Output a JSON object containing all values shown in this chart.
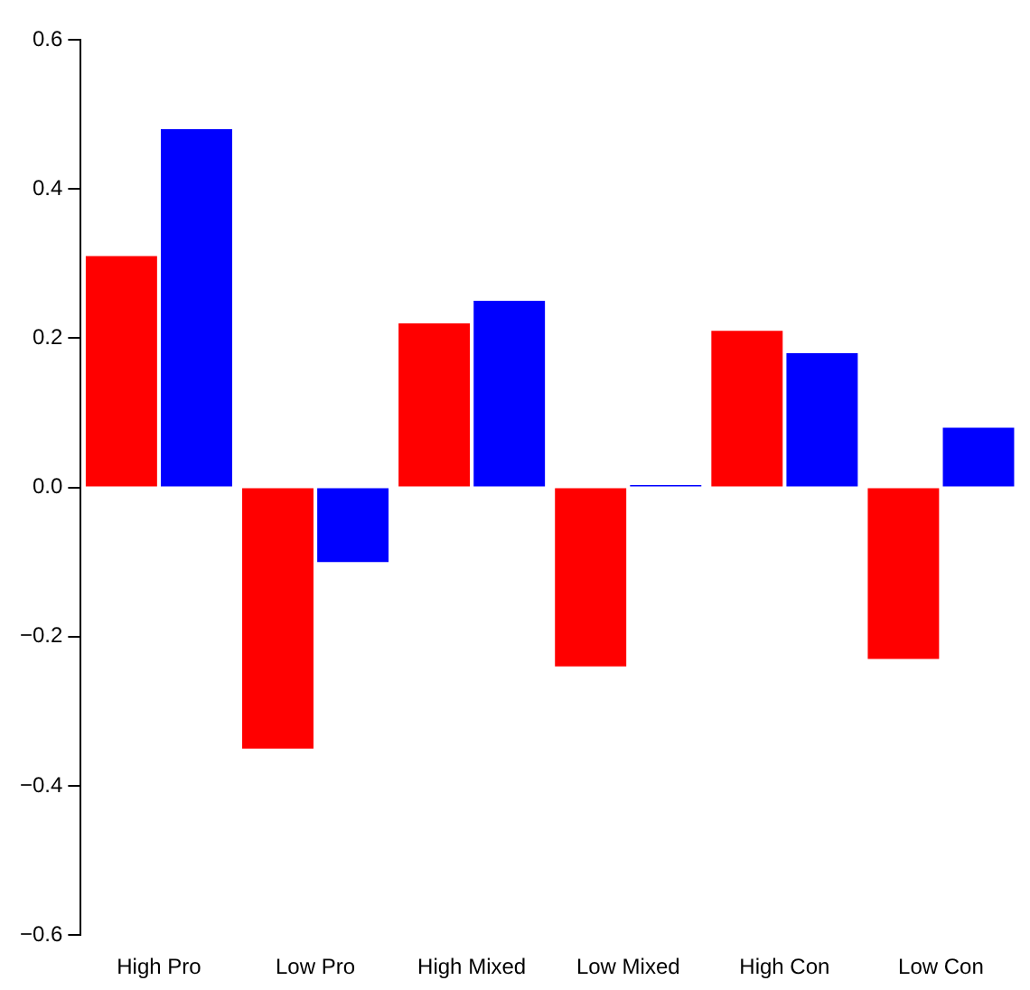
{
  "chart_data": {
    "type": "bar",
    "categories": [
      "High Pro",
      "Low Pro",
      "High Mixed",
      "Low Mixed",
      "High Con",
      "Low Con"
    ],
    "series": [
      {
        "color": "#ff0000",
        "values": [
          0.31,
          -0.35,
          0.22,
          -0.24,
          0.21,
          -0.23
        ]
      },
      {
        "color": "#0000ff",
        "values": [
          0.48,
          -0.1,
          0.25,
          0.003,
          0.18,
          0.08
        ]
      }
    ],
    "ylim": [
      -0.6,
      0.6
    ],
    "yticks": [
      {
        "value": -0.6,
        "label": "−0.6"
      },
      {
        "value": -0.4,
        "label": "−0.4"
      },
      {
        "value": -0.2,
        "label": "−0.2"
      },
      {
        "value": 0,
        "label": "0.0"
      },
      0.2,
      0.4,
      0.6
    ],
    "grid": false,
    "legend": false
  }
}
